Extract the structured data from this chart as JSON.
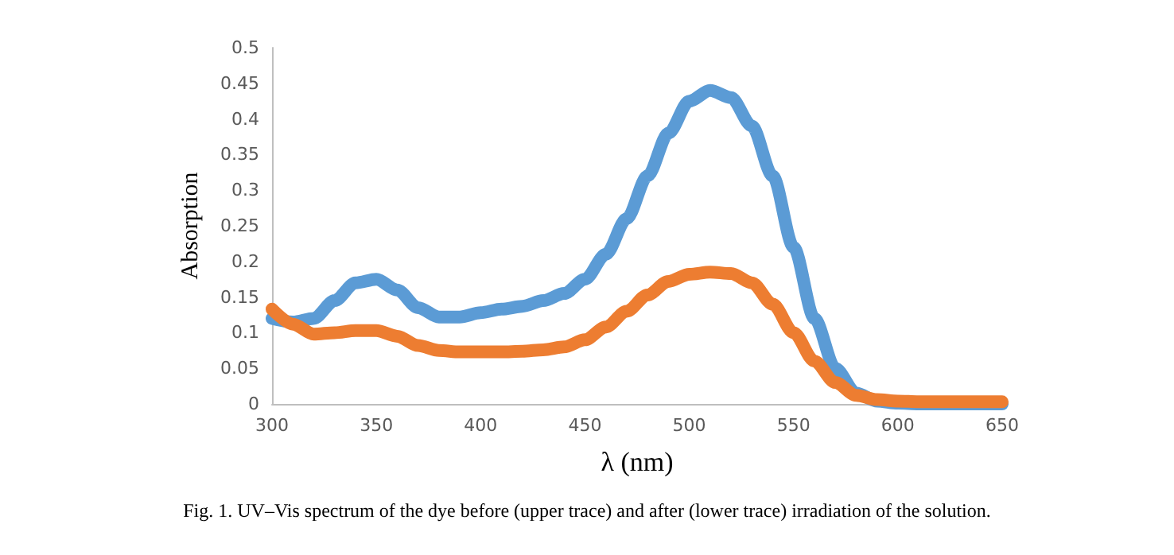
{
  "chart_data": {
    "type": "line",
    "xlabel": "λ (nm)",
    "ylabel": "Absorption",
    "annotations": [
      "Fig. 1. UV–Vis spectrum of the dye before (upper trace) and after (lower trace) irradiation of the solution."
    ],
    "x": [
      300,
      310,
      320,
      330,
      340,
      350,
      360,
      370,
      380,
      390,
      400,
      410,
      420,
      430,
      440,
      450,
      460,
      470,
      480,
      490,
      500,
      510,
      520,
      530,
      540,
      550,
      560,
      570,
      580,
      590,
      600,
      610,
      620,
      630,
      640,
      650
    ],
    "series": [
      {
        "color": "#5b9bd5",
        "values": [
          0.12,
          0.115,
          0.12,
          0.145,
          0.17,
          0.175,
          0.16,
          0.135,
          0.122,
          0.122,
          0.128,
          0.133,
          0.137,
          0.145,
          0.155,
          0.175,
          0.21,
          0.26,
          0.32,
          0.38,
          0.425,
          0.44,
          0.43,
          0.39,
          0.32,
          0.22,
          0.12,
          0.05,
          0.015,
          0.004,
          0.001,
          0,
          0,
          0,
          0,
          0
        ]
      },
      {
        "color": "#ed7d31",
        "values": [
          0.133,
          0.112,
          0.098,
          0.1,
          0.103,
          0.103,
          0.095,
          0.082,
          0.075,
          0.073,
          0.073,
          0.073,
          0.074,
          0.076,
          0.08,
          0.09,
          0.108,
          0.13,
          0.153,
          0.172,
          0.182,
          0.185,
          0.183,
          0.17,
          0.14,
          0.1,
          0.06,
          0.03,
          0.012,
          0.006,
          0.004,
          0.003,
          0.003,
          0.003,
          0.003,
          0.003
        ]
      }
    ],
    "xlim": [
      300,
      650
    ],
    "xticks": [
      300,
      350,
      400,
      450,
      500,
      550,
      600,
      650
    ],
    "ylim": [
      0,
      0.5
    ],
    "yticks": [
      0,
      0.05,
      0.1,
      0.15,
      0.2,
      0.25,
      0.3,
      0.35,
      0.4,
      0.45,
      0.5
    ],
    "grid": false,
    "marker": "none",
    "line_style": "solid"
  }
}
